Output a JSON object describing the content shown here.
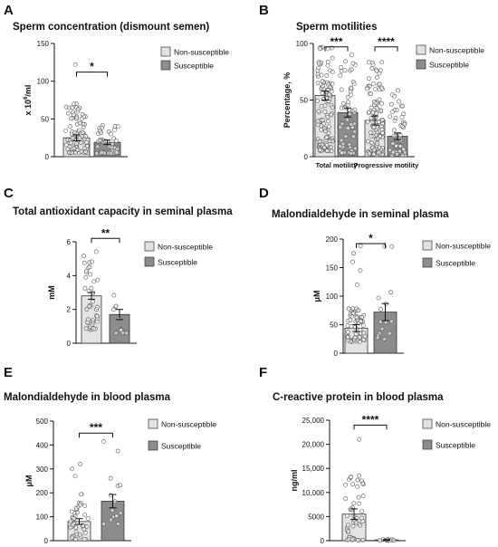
{
  "colors": {
    "non_susceptible": "#e3e3e3",
    "susceptible": "#8c8c8c",
    "axis": "#111111",
    "point": "#555555"
  },
  "chart_data": [
    {
      "letter": "A",
      "type": "bar",
      "title": "Sperm concentration (dismount semen)",
      "ylabel_base": "x 10",
      "ylabel_sup": "6",
      "ylabel_tail": "/ml",
      "ylim": [
        0,
        150
      ],
      "yticks": [
        "0",
        "50",
        "100",
        "150"
      ],
      "categories": [
        ""
      ],
      "series": [
        {
          "name": "Non-susceptible",
          "values": [
            25
          ]
        },
        {
          "name": "Susceptible",
          "values": [
            19
          ]
        }
      ],
      "error": [
        4,
        3
      ],
      "significance": [
        {
          "label": "*",
          "from": 0,
          "to": 1,
          "y": 112
        }
      ],
      "legend": [
        "Non-susceptible",
        "Susceptible"
      ],
      "legend_position": "right"
    },
    {
      "letter": "B",
      "type": "bar",
      "title": "Sperm motilities",
      "ylabel": "Percentage, %",
      "ylim": [
        0,
        100
      ],
      "yticks": [
        "0",
        "50",
        "100"
      ],
      "categories": [
        "Total motility",
        "Progressive motility"
      ],
      "series": [
        {
          "name": "Non-susceptible",
          "values": [
            54,
            32
          ]
        },
        {
          "name": "Susceptible",
          "values": [
            39,
            18
          ]
        }
      ],
      "error": [
        4,
        4,
        4,
        3
      ],
      "significance": [
        {
          "label": "***",
          "from": 0,
          "to": 1,
          "y": 97
        },
        {
          "label": "****",
          "from": 2,
          "to": 3,
          "y": 97
        }
      ],
      "legend": [
        "Non-susceptible",
        "Susceptible"
      ],
      "legend_position": "right"
    },
    {
      "letter": "C",
      "type": "bar",
      "title": "Total antioxidant capacity in seminal plasma",
      "ylabel": "mM",
      "ylim": [
        0,
        6
      ],
      "yticks": [
        "0",
        "2",
        "4",
        "6"
      ],
      "categories": [
        ""
      ],
      "series": [
        {
          "name": "Non-susceptible",
          "values": [
            2.8
          ]
        },
        {
          "name": "Susceptible",
          "values": [
            1.7
          ]
        }
      ],
      "error": [
        0.2,
        0.3
      ],
      "significance": [
        {
          "label": "**",
          "from": 0,
          "to": 1,
          "y": 6.2
        }
      ],
      "legend": [
        "Non-susceptible",
        "Susceptible"
      ],
      "legend_position": "right"
    },
    {
      "letter": "D",
      "type": "bar",
      "title": "Malondialdehyde in seminal plasma",
      "ylabel": "μM",
      "ylim": [
        0,
        200
      ],
      "yticks": [
        "0",
        "50",
        "100",
        "150",
        "200"
      ],
      "categories": [
        ""
      ],
      "series": [
        {
          "name": "Non-susceptible",
          "values": [
            44
          ]
        },
        {
          "name": "Susceptible",
          "values": [
            72
          ]
        }
      ],
      "error": [
        6,
        15
      ],
      "significance": [
        {
          "label": "*",
          "from": 0,
          "to": 1,
          "y": 192
        }
      ],
      "legend": [
        "Non-susceptible",
        "Susceptible"
      ],
      "legend_position": "right"
    },
    {
      "letter": "E",
      "type": "bar",
      "title": "Malondialdehyde in blood plasma",
      "ylabel": "μM",
      "ylim": [
        0,
        500
      ],
      "yticks": [
        "0",
        "100",
        "200",
        "300",
        "400",
        "500"
      ],
      "categories": [
        ""
      ],
      "series": [
        {
          "name": "Non-susceptible",
          "values": [
            80
          ]
        },
        {
          "name": "Susceptible",
          "values": [
            165
          ]
        }
      ],
      "error": [
        12,
        28
      ],
      "significance": [
        {
          "label": "***",
          "from": 0,
          "to": 1,
          "y": 450
        }
      ],
      "legend": [
        "Non-susceptible",
        "Susceptible"
      ],
      "legend_position": "right"
    },
    {
      "letter": "F",
      "type": "bar",
      "title": "C-reactive protein in blood plasma",
      "ylabel": "ng/ml",
      "ylim": [
        0,
        25000
      ],
      "yticks": [
        "0",
        "5000",
        "10,000",
        "15,000",
        "20,000",
        "25,000"
      ],
      "categories": [
        ""
      ],
      "series": [
        {
          "name": "Non-susceptible",
          "values": [
            5500
          ]
        },
        {
          "name": "Susceptible",
          "values": [
            150
          ]
        }
      ],
      "error": [
        1100,
        80
      ],
      "significance": [
        {
          "label": "****",
          "from": 0,
          "to": 1,
          "y": 24000
        }
      ],
      "legend": [
        "Non-susceptible",
        "Susceptible"
      ],
      "legend_position": "right"
    }
  ]
}
